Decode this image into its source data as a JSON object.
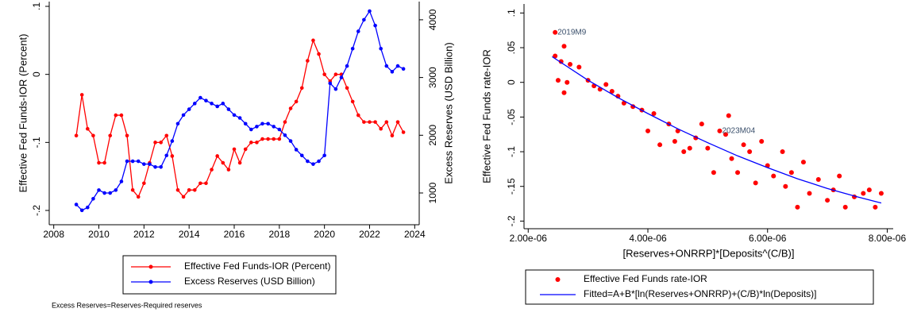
{
  "chart_data": [
    {
      "type": "line",
      "ylabel": "Effective Fed Funds-IOR (Percent)",
      "y2label": "Excess Reserves (USD Billion)",
      "note": "Excess Reserves=Reserves-Required reserves",
      "x": [
        2009,
        2009.25,
        2009.5,
        2009.75,
        2010,
        2010.25,
        2010.5,
        2010.75,
        2011,
        2011.25,
        2011.5,
        2011.75,
        2012,
        2012.25,
        2012.5,
        2012.75,
        2013,
        2013.25,
        2013.5,
        2013.75,
        2014,
        2014.25,
        2014.5,
        2014.75,
        2015,
        2015.25,
        2015.5,
        2015.75,
        2016,
        2016.25,
        2016.5,
        2016.75,
        2017,
        2017.25,
        2017.5,
        2017.75,
        2018,
        2018.25,
        2018.5,
        2018.75,
        2019,
        2019.25,
        2019.5,
        2019.75,
        2020,
        2020.25,
        2020.5,
        2020.75,
        2021,
        2021.25,
        2021.5,
        2021.75,
        2022,
        2022.25,
        2022.5,
        2022.75,
        2023,
        2023.25,
        2023.5
      ],
      "xlim": [
        2007.8,
        2024.2
      ],
      "xticks": [
        2008,
        2010,
        2012,
        2014,
        2016,
        2018,
        2020,
        2022,
        2024
      ],
      "ylim": [
        -0.221,
        0.107
      ],
      "yticks": [
        {
          "value": -0.2,
          "label": "-.2"
        },
        {
          "value": -0.1,
          "label": "-.1"
        },
        0,
        {
          "value": 0.1,
          "label": ".1"
        }
      ],
      "y2lim": [
        450,
        4315
      ],
      "y2ticks": [
        1000,
        2000,
        3000,
        4000
      ],
      "markers": true,
      "series": [
        {
          "name": "Effective Fed Funds-IOR (Percent)",
          "color": "#ff0000",
          "values": [
            -0.09,
            -0.03,
            -0.08,
            -0.09,
            -0.13,
            -0.13,
            -0.09,
            -0.06,
            -0.06,
            -0.09,
            -0.17,
            -0.18,
            -0.16,
            -0.13,
            -0.1,
            -0.1,
            -0.09,
            -0.12,
            -0.17,
            -0.18,
            -0.17,
            -0.17,
            -0.16,
            -0.16,
            -0.14,
            -0.12,
            -0.13,
            -0.14,
            -0.11,
            -0.13,
            -0.11,
            -0.1,
            -0.1,
            -0.095,
            -0.095,
            -0.095,
            -0.095,
            -0.07,
            -0.05,
            -0.04,
            -0.02,
            0.02,
            0.05,
            0.03,
            0.0,
            -0.01,
            0.0,
            0.0,
            -0.02,
            -0.04,
            -0.06,
            -0.07,
            -0.07,
            -0.07,
            -0.08,
            -0.07,
            -0.09,
            -0.07,
            -0.085
          ]
        },
        {
          "name": "Excess Reserves (USD Billion)",
          "color": "#0000ff",
          "axis": "y2",
          "values": [
            800,
            700,
            750,
            900,
            1050,
            1000,
            1000,
            1050,
            1200,
            1550,
            1550,
            1550,
            1500,
            1500,
            1450,
            1450,
            1650,
            1900,
            2200,
            2350,
            2450,
            2550,
            2650,
            2600,
            2550,
            2500,
            2550,
            2450,
            2350,
            2300,
            2200,
            2100,
            2150,
            2200,
            2200,
            2150,
            2100,
            2000,
            1900,
            1750,
            1650,
            1550,
            1500,
            1550,
            1650,
            2900,
            2800,
            3000,
            3200,
            3500,
            3800,
            4000,
            4150,
            3900,
            3500,
            3200,
            3100,
            3200,
            3150
          ]
        }
      ]
    },
    {
      "type": "scatter",
      "xlabel": "[Reserves+ONRRP]*[Deposits^(C/B)]",
      "ylabel": "Effective Fed Funds rate-IOR",
      "xlim": [
        1.93e-06,
        8.1e-06
      ],
      "xticks": [
        {
          "value": 2e-06,
          "label": "2.00e-06"
        },
        {
          "value": 4e-06,
          "label": "4.00e-06"
        },
        {
          "value": 6e-06,
          "label": "6.00e-06"
        },
        {
          "value": 8e-06,
          "label": "8.00e-06"
        }
      ],
      "ylim": [
        -0.211,
        0.113
      ],
      "yticks": [
        {
          "value": -0.2,
          "label": "-.2"
        },
        {
          "value": -0.15,
          "label": "-.15"
        },
        {
          "value": -0.1,
          "label": "-.1"
        },
        {
          "value": -0.05,
          "label": "-.05"
        },
        0,
        {
          "value": 0.05,
          "label": ".05"
        },
        {
          "value": 0.1,
          "label": ".1"
        }
      ],
      "annotations": [
        {
          "text": "2019M9",
          "x": 2.45e-06,
          "y": 0.072
        },
        {
          "text": "2023M04",
          "x": 5.2e-06,
          "y": -0.07
        }
      ],
      "series": [
        {
          "name": "Effective Fed Funds rate-IOR",
          "color": "#ff0000",
          "x": [
            2.45e-06,
            2.45e-06,
            2.5e-06,
            2.55e-06,
            2.6e-06,
            2.6e-06,
            2.65e-06,
            2.7e-06,
            2.85e-06,
            3e-06,
            3.1e-06,
            3.2e-06,
            3.3e-06,
            3.4e-06,
            3.5e-06,
            3.6e-06,
            3.75e-06,
            3.9e-06,
            4e-06,
            4.1e-06,
            4.2e-06,
            4.35e-06,
            4.45e-06,
            4.5e-06,
            4.6e-06,
            4.7e-06,
            4.8e-06,
            4.9e-06,
            5e-06,
            5.1e-06,
            5.2e-06,
            5.3e-06,
            5.35e-06,
            5.4e-06,
            5.5e-06,
            5.6e-06,
            5.7e-06,
            5.8e-06,
            5.9e-06,
            6e-06,
            6.1e-06,
            6.25e-06,
            6.3e-06,
            6.4e-06,
            6.5e-06,
            6.6e-06,
            6.7e-06,
            6.85e-06,
            7e-06,
            7.1e-06,
            7.2e-06,
            7.3e-06,
            7.45e-06,
            7.6e-06,
            7.7e-06,
            7.8e-06,
            7.9e-06
          ],
          "values": [
            0.072,
            0.038,
            0.003,
            0.03,
            0.052,
            -0.015,
            0.0,
            0.026,
            0.022,
            0.003,
            -0.005,
            -0.01,
            -0.003,
            -0.013,
            -0.02,
            -0.03,
            -0.035,
            -0.04,
            -0.07,
            -0.045,
            -0.09,
            -0.06,
            -0.085,
            -0.07,
            -0.1,
            -0.095,
            -0.08,
            -0.06,
            -0.095,
            -0.13,
            -0.07,
            -0.075,
            -0.048,
            -0.11,
            -0.13,
            -0.09,
            -0.1,
            -0.145,
            -0.085,
            -0.12,
            -0.135,
            -0.1,
            -0.15,
            -0.13,
            -0.18,
            -0.115,
            -0.16,
            -0.14,
            -0.17,
            -0.155,
            -0.135,
            -0.18,
            -0.165,
            -0.16,
            -0.155,
            -0.18,
            -0.16
          ]
        },
        {
          "name": "Fitted=A+B*[ln(Reserves+ONRRP)+(C/B)*ln(Deposits)]",
          "color": "#0000ff",
          "type": "line",
          "x": [
            2.4e-06,
            3e-06,
            3.5e-06,
            4e-06,
            4.5e-06,
            5e-06,
            5.5e-06,
            6e-06,
            6.5e-06,
            7e-06,
            7.5e-06,
            7.9e-06
          ],
          "values": [
            0.037,
            0.003,
            -0.022,
            -0.045,
            -0.067,
            -0.087,
            -0.106,
            -0.123,
            -0.139,
            -0.153,
            -0.165,
            -0.174
          ]
        }
      ]
    }
  ]
}
